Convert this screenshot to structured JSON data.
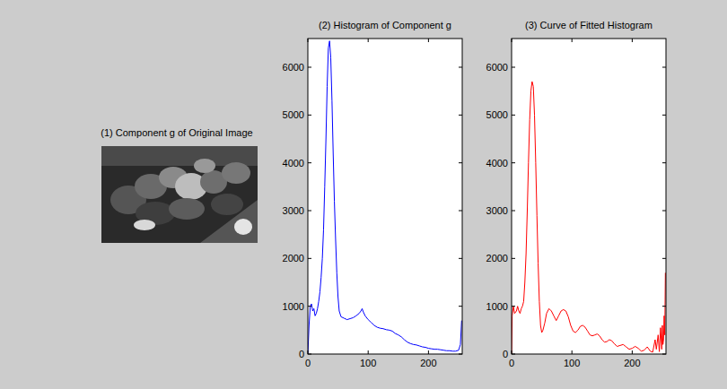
{
  "chart_data": [
    {
      "type": "image",
      "title": "(1)  Component g of Original Image"
    },
    {
      "type": "line",
      "title": "(2) Histogram of Component g",
      "color": "#0000ff",
      "xlim": [
        0,
        256
      ],
      "xticks": [
        0,
        100,
        200
      ],
      "ylim": [
        0,
        6600
      ],
      "yticks": [
        0,
        1000,
        2000,
        3000,
        4000,
        5000,
        6000
      ],
      "x": [
        0,
        2,
        4,
        6,
        8,
        10,
        12,
        14,
        16,
        18,
        20,
        22,
        24,
        26,
        28,
        30,
        32,
        34,
        36,
        38,
        40,
        42,
        44,
        46,
        48,
        50,
        52,
        55,
        60,
        65,
        70,
        75,
        80,
        85,
        88,
        90,
        92,
        95,
        100,
        105,
        110,
        115,
        120,
        125,
        130,
        135,
        140,
        145,
        150,
        155,
        160,
        165,
        170,
        175,
        180,
        185,
        190,
        195,
        200,
        205,
        210,
        215,
        220,
        225,
        230,
        235,
        240,
        245,
        250,
        253,
        255
      ],
      "values": [
        0,
        600,
        1000,
        1050,
        900,
        950,
        800,
        850,
        950,
        1100,
        1300,
        1600,
        2000,
        2600,
        3500,
        4500,
        5600,
        6400,
        6550,
        6200,
        5300,
        4200,
        3200,
        2400,
        1700,
        1200,
        900,
        780,
        750,
        720,
        740,
        760,
        800,
        850,
        900,
        950,
        880,
        800,
        720,
        660,
        600,
        560,
        540,
        530,
        510,
        500,
        480,
        430,
        400,
        360,
        300,
        250,
        220,
        200,
        190,
        170,
        150,
        140,
        120,
        110,
        100,
        100,
        90,
        80,
        70,
        70,
        60,
        60,
        80,
        200,
        700
      ]
    },
    {
      "type": "line",
      "title": "(3) Curve of Fitted Histogram",
      "color": "#ff0000",
      "xlim": [
        0,
        256
      ],
      "xticks": [
        0,
        100,
        200
      ],
      "ylim": [
        0,
        6600
      ],
      "yticks": [
        0,
        1000,
        2000,
        3000,
        4000,
        5000,
        6000
      ],
      "x": [
        0,
        1,
        3,
        5,
        8,
        10,
        12,
        14,
        16,
        18,
        20,
        22,
        24,
        26,
        28,
        30,
        32,
        34,
        36,
        38,
        40,
        42,
        44,
        46,
        48,
        50,
        52,
        55,
        58,
        62,
        66,
        70,
        74,
        78,
        82,
        86,
        90,
        94,
        98,
        102,
        106,
        110,
        114,
        118,
        122,
        126,
        130,
        134,
        138,
        142,
        146,
        150,
        154,
        158,
        162,
        166,
        170,
        175,
        180,
        185,
        190,
        195,
        200,
        205,
        210,
        215,
        220,
        225,
        230,
        234,
        238,
        240,
        243,
        245,
        247,
        249,
        250,
        251,
        252,
        253,
        254,
        255
      ],
      "values": [
        0,
        800,
        1000,
        850,
        900,
        1000,
        900,
        850,
        950,
        1000,
        1100,
        1500,
        2100,
        3000,
        4000,
        4900,
        5500,
        5700,
        5600,
        5000,
        4000,
        2900,
        1900,
        1100,
        600,
        450,
        500,
        650,
        850,
        950,
        900,
        800,
        700,
        800,
        900,
        930,
        900,
        780,
        600,
        480,
        450,
        500,
        580,
        600,
        560,
        480,
        400,
        380,
        400,
        420,
        380,
        300,
        250,
        260,
        300,
        280,
        220,
        160,
        180,
        200,
        150,
        100,
        120,
        160,
        120,
        60,
        80,
        150,
        60,
        40,
        300,
        100,
        400,
        50,
        550,
        100,
        600,
        200,
        300,
        800,
        400,
        1700
      ]
    }
  ]
}
